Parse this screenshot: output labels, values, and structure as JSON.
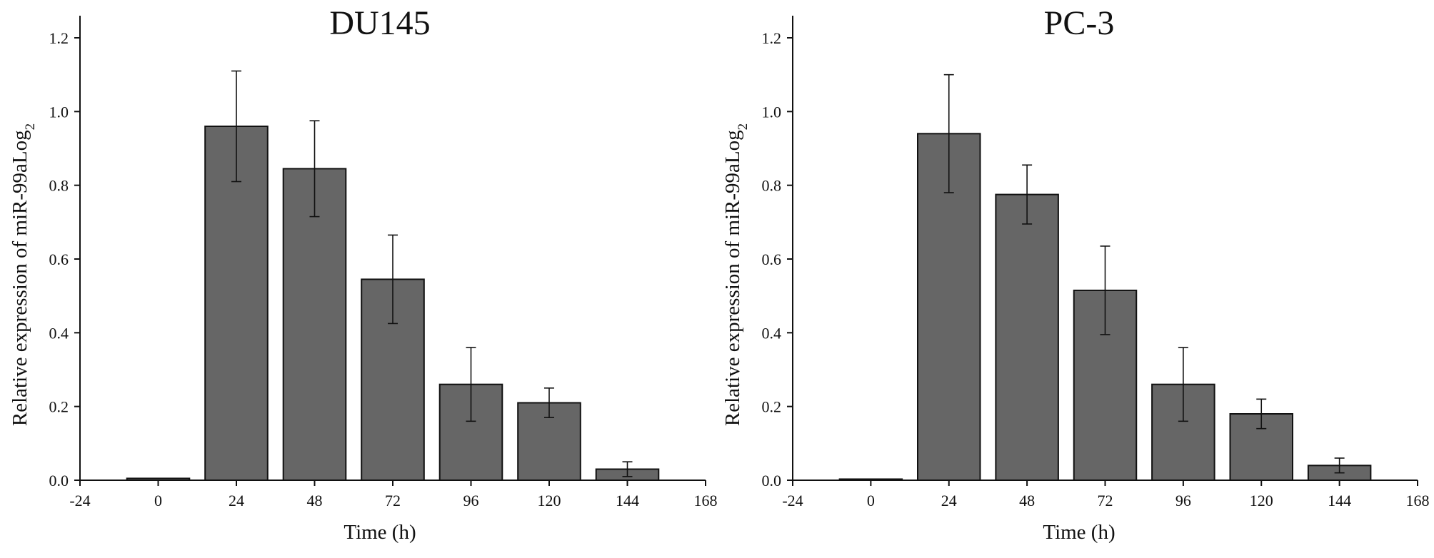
{
  "colors": {
    "bar_fill": "#666666",
    "bar_stroke": "#111111",
    "axis": "#111111"
  },
  "chart_data": [
    {
      "type": "bar",
      "title": "DU145",
      "xlabel": "Time (h)",
      "ylabel": "Relative expression of miR-99aLog",
      "ylabel_subscript": "2",
      "x": [
        0,
        24,
        48,
        72,
        96,
        120,
        144
      ],
      "values": [
        0.005,
        0.96,
        0.845,
        0.545,
        0.26,
        0.21,
        0.03
      ],
      "errors": [
        0.0,
        0.15,
        0.13,
        0.12,
        0.1,
        0.04,
        0.02
      ],
      "xlim": [
        -24,
        168
      ],
      "ylim": [
        0,
        1.26
      ],
      "xticks": [
        "-24",
        "0",
        "24",
        "48",
        "72",
        "96",
        "120",
        "144",
        "168"
      ],
      "yticks": [
        "0.0",
        "0.2",
        "0.4",
        "0.6",
        "0.8",
        "1.0",
        "1.2"
      ],
      "grid": false,
      "legend": "none"
    },
    {
      "type": "bar",
      "title": "PC-3",
      "xlabel": "Time (h)",
      "ylabel": "Relative expression of miR-99aLog",
      "ylabel_subscript": "2",
      "x": [
        0,
        24,
        48,
        72,
        96,
        120,
        144
      ],
      "values": [
        0.003,
        0.94,
        0.775,
        0.515,
        0.26,
        0.18,
        0.04
      ],
      "errors": [
        0.0,
        0.16,
        0.08,
        0.12,
        0.1,
        0.04,
        0.02
      ],
      "xlim": [
        -24,
        168
      ],
      "ylim": [
        0,
        1.26
      ],
      "xticks": [
        "-24",
        "0",
        "24",
        "48",
        "72",
        "96",
        "120",
        "144",
        "168"
      ],
      "yticks": [
        "0.0",
        "0.2",
        "0.4",
        "0.6",
        "0.8",
        "1.0",
        "1.2"
      ],
      "grid": false,
      "legend": "none"
    }
  ]
}
